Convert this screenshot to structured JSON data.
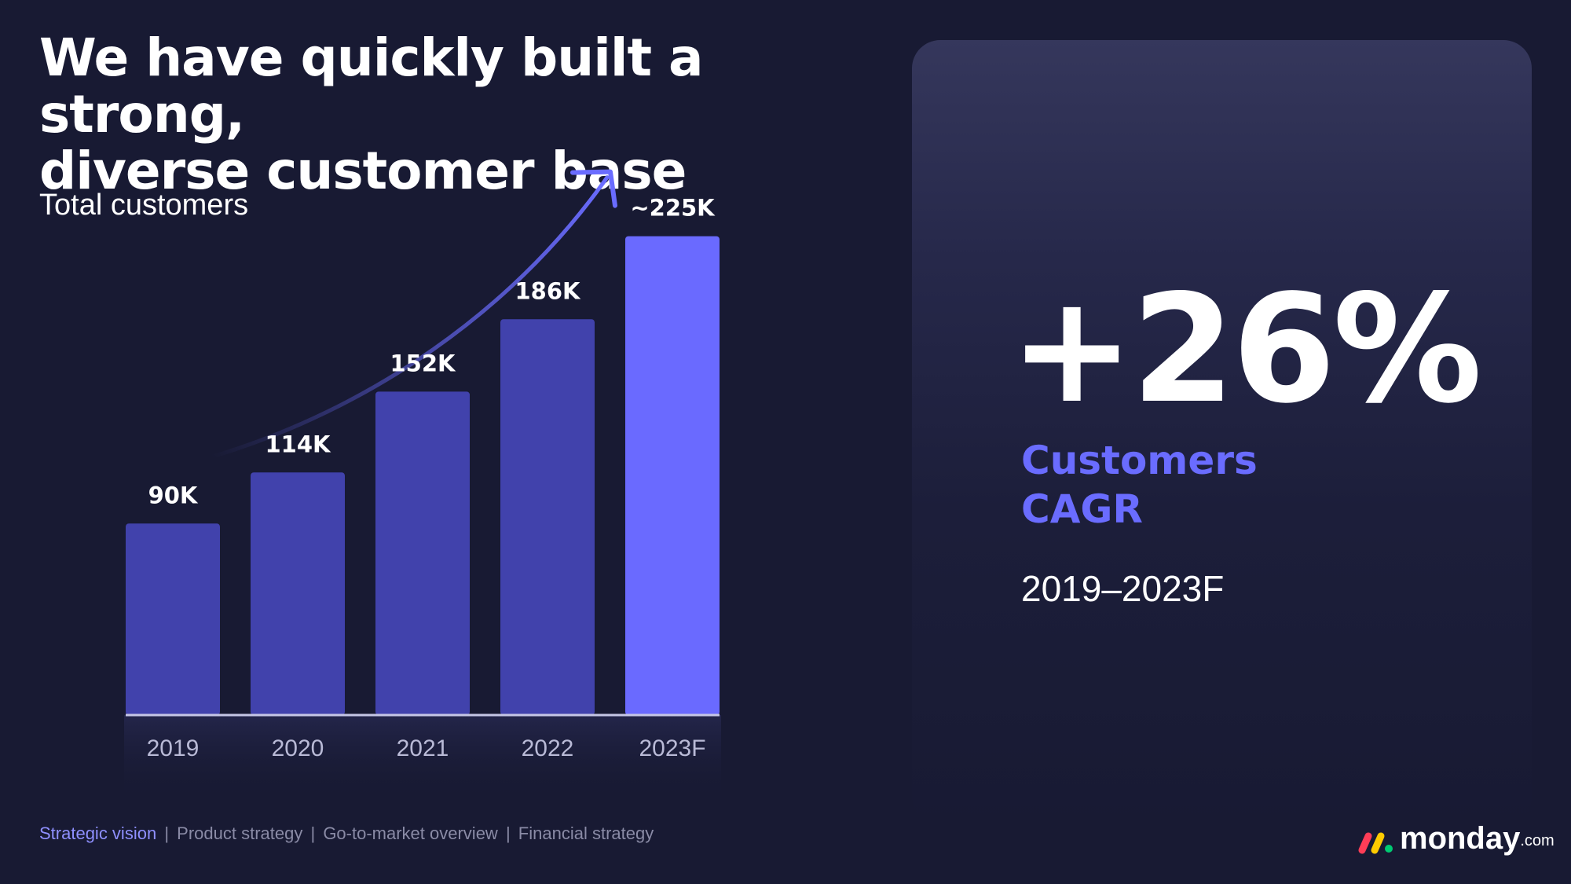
{
  "slide": {
    "title_line1": "We have quickly built a strong,",
    "title_line2": "diverse customer base",
    "subtitle": "Total customers"
  },
  "chart_data": {
    "type": "bar",
    "categories": [
      "2019",
      "2020",
      "2021",
      "2022",
      "2023F"
    ],
    "values": [
      90,
      114,
      152,
      186,
      225
    ],
    "data_labels": [
      "90K",
      "114K",
      "152K",
      "186K",
      "~225K"
    ],
    "title": "Total customers",
    "unit": "K",
    "ylim": [
      0,
      240
    ],
    "grid": false,
    "highlight_index": 4,
    "colors": {
      "bar": "#4142ac",
      "highlight": "#6a6aff",
      "axis": "#c6c7e6",
      "arrow": "#6a6cff"
    }
  },
  "kpi": {
    "value": "+26%",
    "label_line1": "Customers",
    "label_line2": "CAGR",
    "period": "2019–2023F"
  },
  "footer": {
    "nav": [
      "Strategic vision",
      "Product strategy",
      "Go-to-market overview",
      "Financial strategy"
    ],
    "active_index": 0,
    "separator": "|"
  },
  "logo": {
    "word": "monday",
    "suffix": ".com",
    "colors": [
      "#ff3d57",
      "#ffcb00",
      "#00ca72"
    ]
  }
}
